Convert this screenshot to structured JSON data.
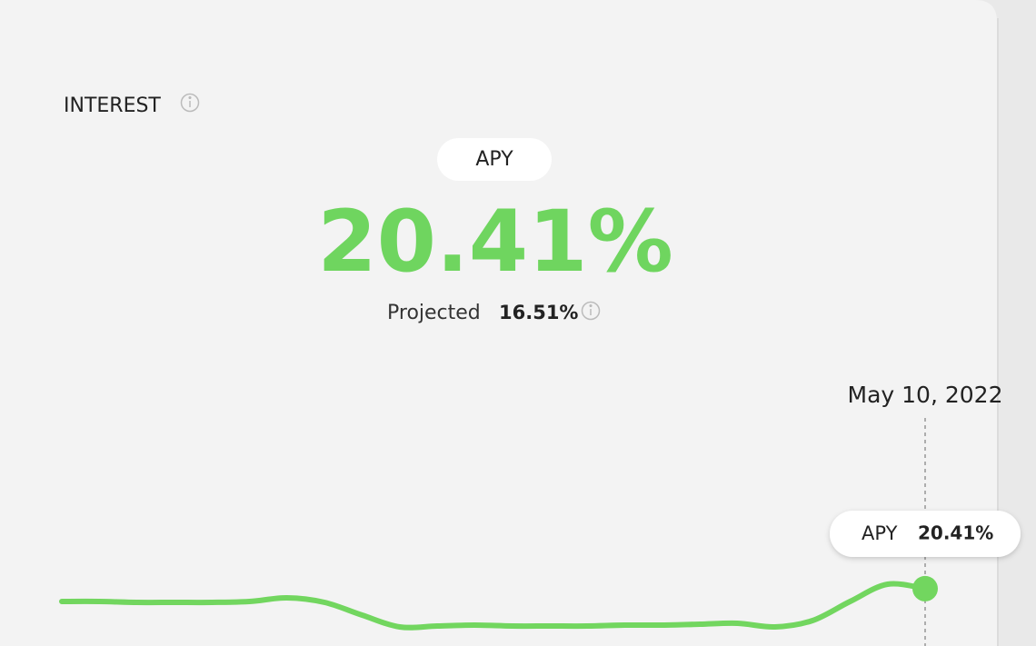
{
  "header": {
    "title": "INTEREST"
  },
  "metric": {
    "pill": "APY",
    "value": "20.41%",
    "projected_label": "Projected",
    "projected_value": "16.51%"
  },
  "hover": {
    "date": "May 10, 2022",
    "tooltip_label": "APY",
    "tooltip_value": "20.41%"
  },
  "chart_data": {
    "type": "line",
    "color": "#72d65f",
    "ylim": [
      14.2,
      25.2
    ],
    "values": [
      19.0,
      19.0,
      18.9,
      18.9,
      18.9,
      19.0,
      19.4,
      18.9,
      17.5,
      16.2,
      16.3,
      16.4,
      16.3,
      16.3,
      16.3,
      16.4,
      16.4,
      16.5,
      16.6,
      16.2,
      16.9,
      19.0,
      20.9,
      20.41
    ]
  }
}
